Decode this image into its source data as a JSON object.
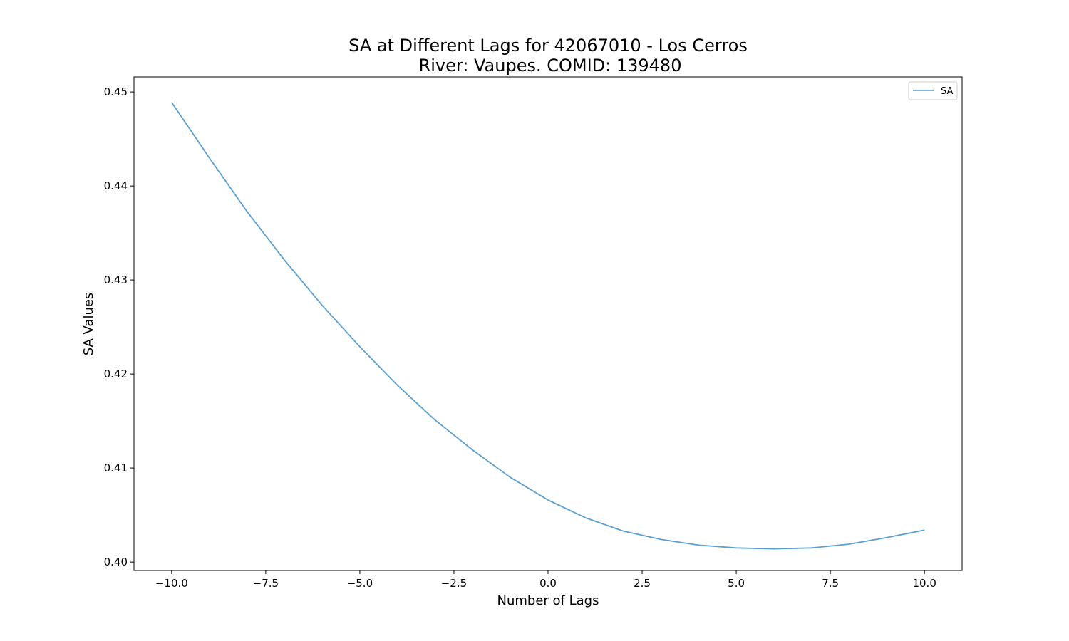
{
  "chart_data": {
    "type": "line",
    "title": "SA at Different Lags for 42067010 - Los Cerros",
    "subtitle": "River: Vaupes. COMID: 139480",
    "xlabel": "Number of Lags",
    "ylabel": "SA Values",
    "xlim": [
      -11,
      11
    ],
    "ylim": [
      0.3991,
      0.4516
    ],
    "xticks": [
      -10,
      -7.5,
      -5,
      -2.5,
      0,
      2.5,
      5,
      7.5,
      10
    ],
    "xtick_labels": [
      "−10.0",
      "−7.5",
      "−5.0",
      "−2.5",
      "0.0",
      "2.5",
      "5.0",
      "7.5",
      "10.0"
    ],
    "yticks": [
      0.4,
      0.41,
      0.42,
      0.43,
      0.44,
      0.45
    ],
    "ytick_labels": [
      "0.40",
      "0.41",
      "0.42",
      "0.43",
      "0.44",
      "0.45"
    ],
    "grid": false,
    "legend_position": "top-right",
    "series": [
      {
        "name": "SA",
        "color": "#5b9fd0",
        "x": [
          -10,
          -9,
          -8,
          -7,
          -6,
          -5,
          -4,
          -3,
          -2,
          -1,
          0,
          1,
          2,
          3,
          4,
          5,
          6,
          7,
          8,
          9,
          10
        ],
        "y": [
          0.4489,
          0.443,
          0.4373,
          0.4321,
          0.4273,
          0.4229,
          0.4188,
          0.4151,
          0.4119,
          0.409,
          0.4066,
          0.4047,
          0.4033,
          0.4024,
          0.4018,
          0.4015,
          0.4014,
          0.4015,
          0.4019,
          0.4026,
          0.4034
        ]
      }
    ]
  }
}
